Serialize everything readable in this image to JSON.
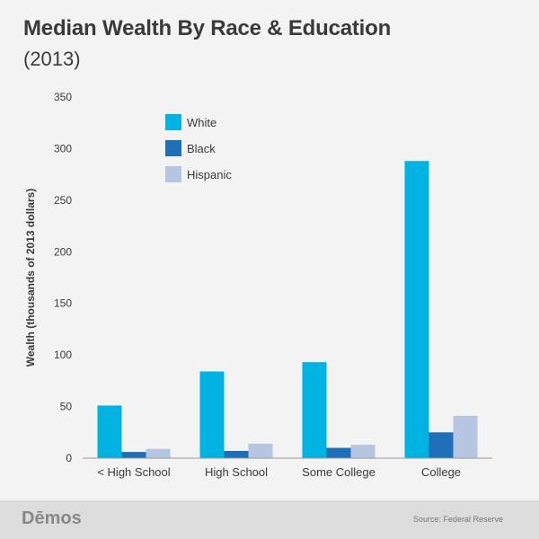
{
  "header": {
    "title": "Median Wealth By Race & Education",
    "subtitle": "(2013)"
  },
  "footer": {
    "logo": "Dēmos",
    "source": "Source: Federal Reserve"
  },
  "colors": {
    "White": "#00b3e3",
    "Black": "#1e6fb8",
    "Hispanic": "#b6c6e2"
  },
  "chart_data": {
    "type": "bar",
    "title": "Median Wealth By Race & Education",
    "subtitle": "(2013)",
    "xlabel": "",
    "ylabel": "Wealth (thousands of 2013 dollars)",
    "ylim": [
      0,
      350
    ],
    "yticks": [
      0,
      50,
      100,
      150,
      200,
      250,
      300,
      350
    ],
    "categories": [
      "< High School",
      "High School",
      "Some College",
      "College"
    ],
    "series": [
      {
        "name": "White",
        "values": [
          51,
          84,
          93,
          288
        ]
      },
      {
        "name": "Black",
        "values": [
          6,
          7,
          10,
          25
        ]
      },
      {
        "name": "Hispanic",
        "values": [
          9,
          14,
          13,
          41
        ]
      }
    ],
    "legend_position": "top-left",
    "grid": false
  }
}
